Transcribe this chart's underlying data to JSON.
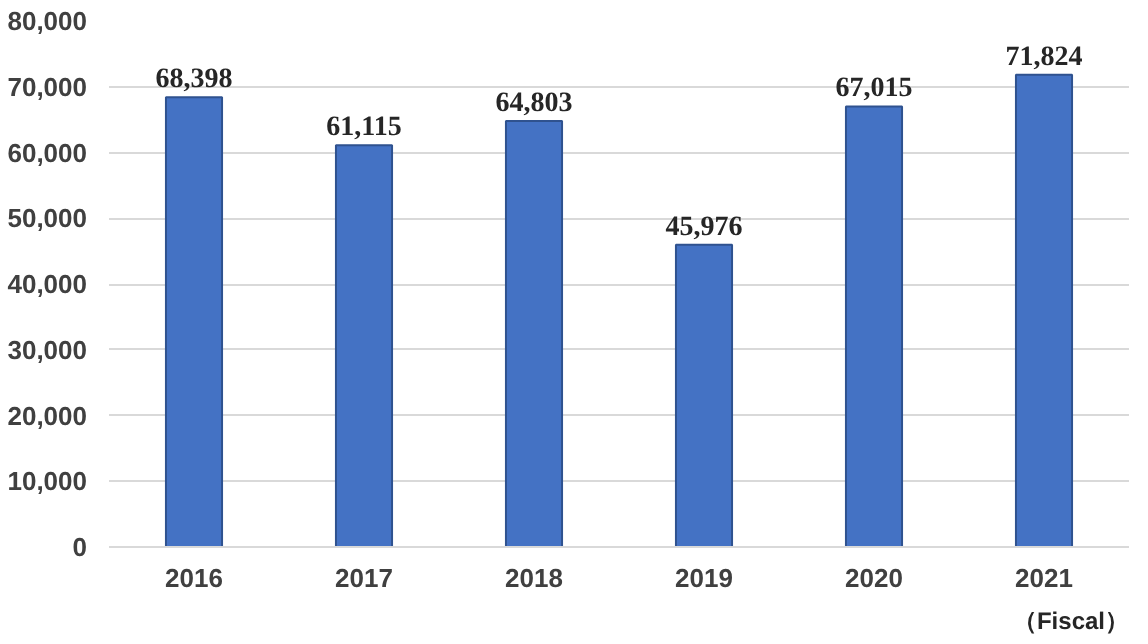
{
  "chart_data": {
    "type": "bar",
    "categories": [
      "2016",
      "2017",
      "2018",
      "2019",
      "2020",
      "2021"
    ],
    "values": [
      68398,
      61115,
      64803,
      45976,
      67015,
      71824
    ],
    "value_labels": [
      "68,398",
      "61,115",
      "64,803",
      "45,976",
      "67,015",
      "71,824"
    ],
    "color": "#4472c4",
    "ylim": [
      0,
      80000
    ],
    "yticks": [
      {
        "value": 0,
        "label": "0"
      },
      {
        "value": 10000,
        "label": "10,000"
      },
      {
        "value": 20000,
        "label": "20,000"
      },
      {
        "value": 30000,
        "label": "30,000"
      },
      {
        "value": 40000,
        "label": "40,000"
      },
      {
        "value": 50000,
        "label": "50,000"
      },
      {
        "value": 60000,
        "label": "60,000"
      },
      {
        "value": 70000,
        "label": "70,000"
      },
      {
        "value": 80000,
        "label": "80,000"
      }
    ],
    "grid": "y",
    "annotations": [
      "（Fiscal）"
    ]
  }
}
